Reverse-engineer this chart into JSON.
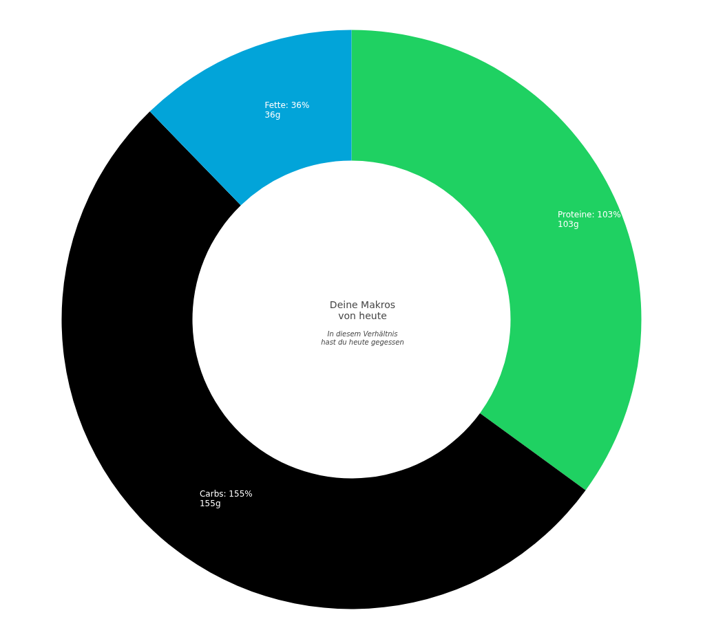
{
  "chart_data": {
    "type": "donut",
    "title": "Deine Makros\nvon heute",
    "subtitle": "In diesem Verhältnis\nhast du heute gegessen",
    "categories": [
      "Proteine",
      "Carbs",
      "Fette"
    ],
    "values": [
      103,
      155,
      36
    ],
    "colors": [
      "#1fd162",
      "#000000",
      "#02a4d9"
    ],
    "value_labels": [
      "103%\n103g",
      "155%\n155g",
      "36%\n36g"
    ],
    "legend": false
  }
}
